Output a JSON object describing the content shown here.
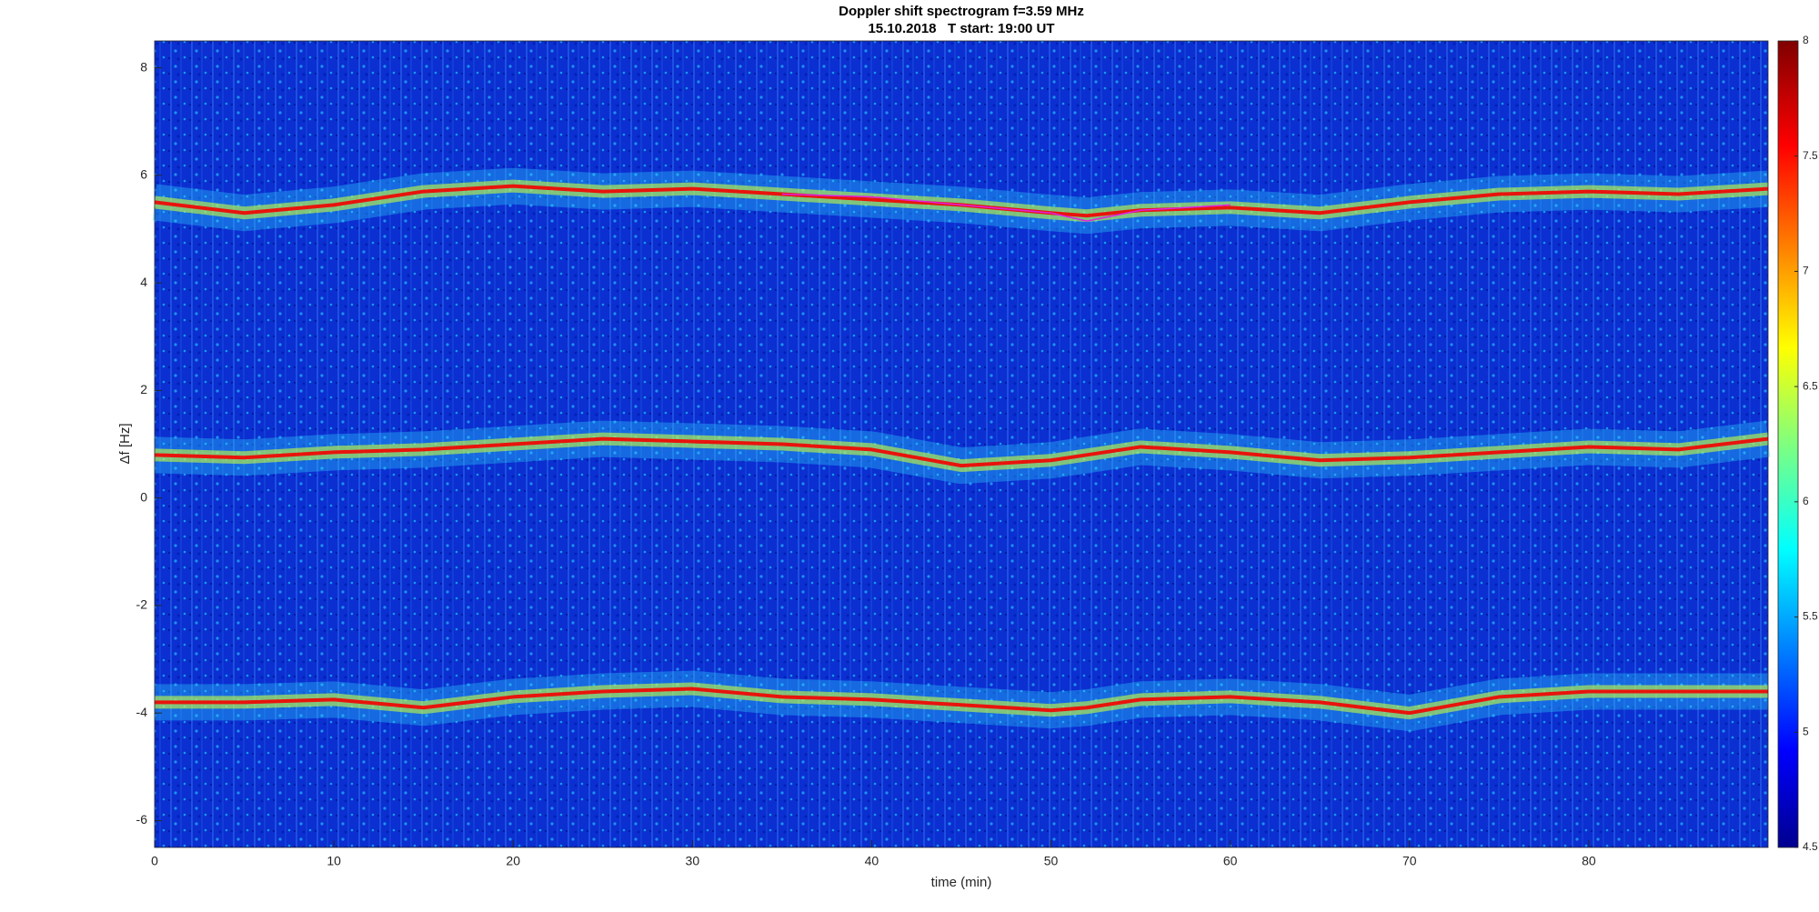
{
  "chart_data": {
    "type": "spectrogram",
    "title": "Doppler shift spectrogram f=3.59 MHz",
    "subtitle": "15.10.2018   T start: 19:00 UT",
    "x_label": "time (min)",
    "y_label": "Δf [Hz]",
    "xlim": [
      0,
      90
    ],
    "xticks": [
      0,
      10,
      20,
      30,
      40,
      50,
      60,
      70,
      80
    ],
    "ylim": [
      -6.5,
      8.5
    ],
    "yticks": [
      -6,
      -4,
      -2,
      0,
      2,
      4,
      6,
      8
    ],
    "colorbar": {
      "lim": [
        4.5,
        8
      ],
      "ticks": [
        4.5,
        5,
        5.5,
        6,
        6.5,
        7,
        7.5,
        8
      ]
    },
    "x": [
      0,
      5,
      10,
      15,
      20,
      25,
      30,
      35,
      40,
      45,
      50,
      52,
      55,
      60,
      65,
      70,
      75,
      80,
      85,
      90
    ],
    "series": [
      {
        "color": "#e8140c",
        "values": [
          5.5,
          5.3,
          5.45,
          5.7,
          5.8,
          5.7,
          5.75,
          5.65,
          5.55,
          5.45,
          5.3,
          5.25,
          5.35,
          5.4,
          5.3,
          5.5,
          5.65,
          5.7,
          5.65,
          5.75
        ]
      },
      {
        "color": "#e8140c",
        "values": [
          0.8,
          0.75,
          0.85,
          0.9,
          1.0,
          1.1,
          1.05,
          1.0,
          0.9,
          0.6,
          0.7,
          0.8,
          0.95,
          0.85,
          0.7,
          0.75,
          0.85,
          0.95,
          0.9,
          1.1
        ]
      },
      {
        "color": "#e8140c",
        "values": [
          -3.8,
          -3.8,
          -3.75,
          -3.9,
          -3.7,
          -3.6,
          -3.55,
          -3.7,
          -3.75,
          -3.85,
          -3.95,
          -3.9,
          -3.75,
          -3.7,
          -3.8,
          -4.0,
          -3.7,
          -3.6,
          -3.6,
          -3.6
        ]
      },
      {
        "color": "#e020e0",
        "values": [
          null,
          null,
          null,
          null,
          null,
          null,
          null,
          5.65,
          5.6,
          5.45,
          5.3,
          5.15,
          5.35,
          5.45,
          null,
          null,
          null,
          null,
          null,
          null
        ]
      }
    ]
  }
}
